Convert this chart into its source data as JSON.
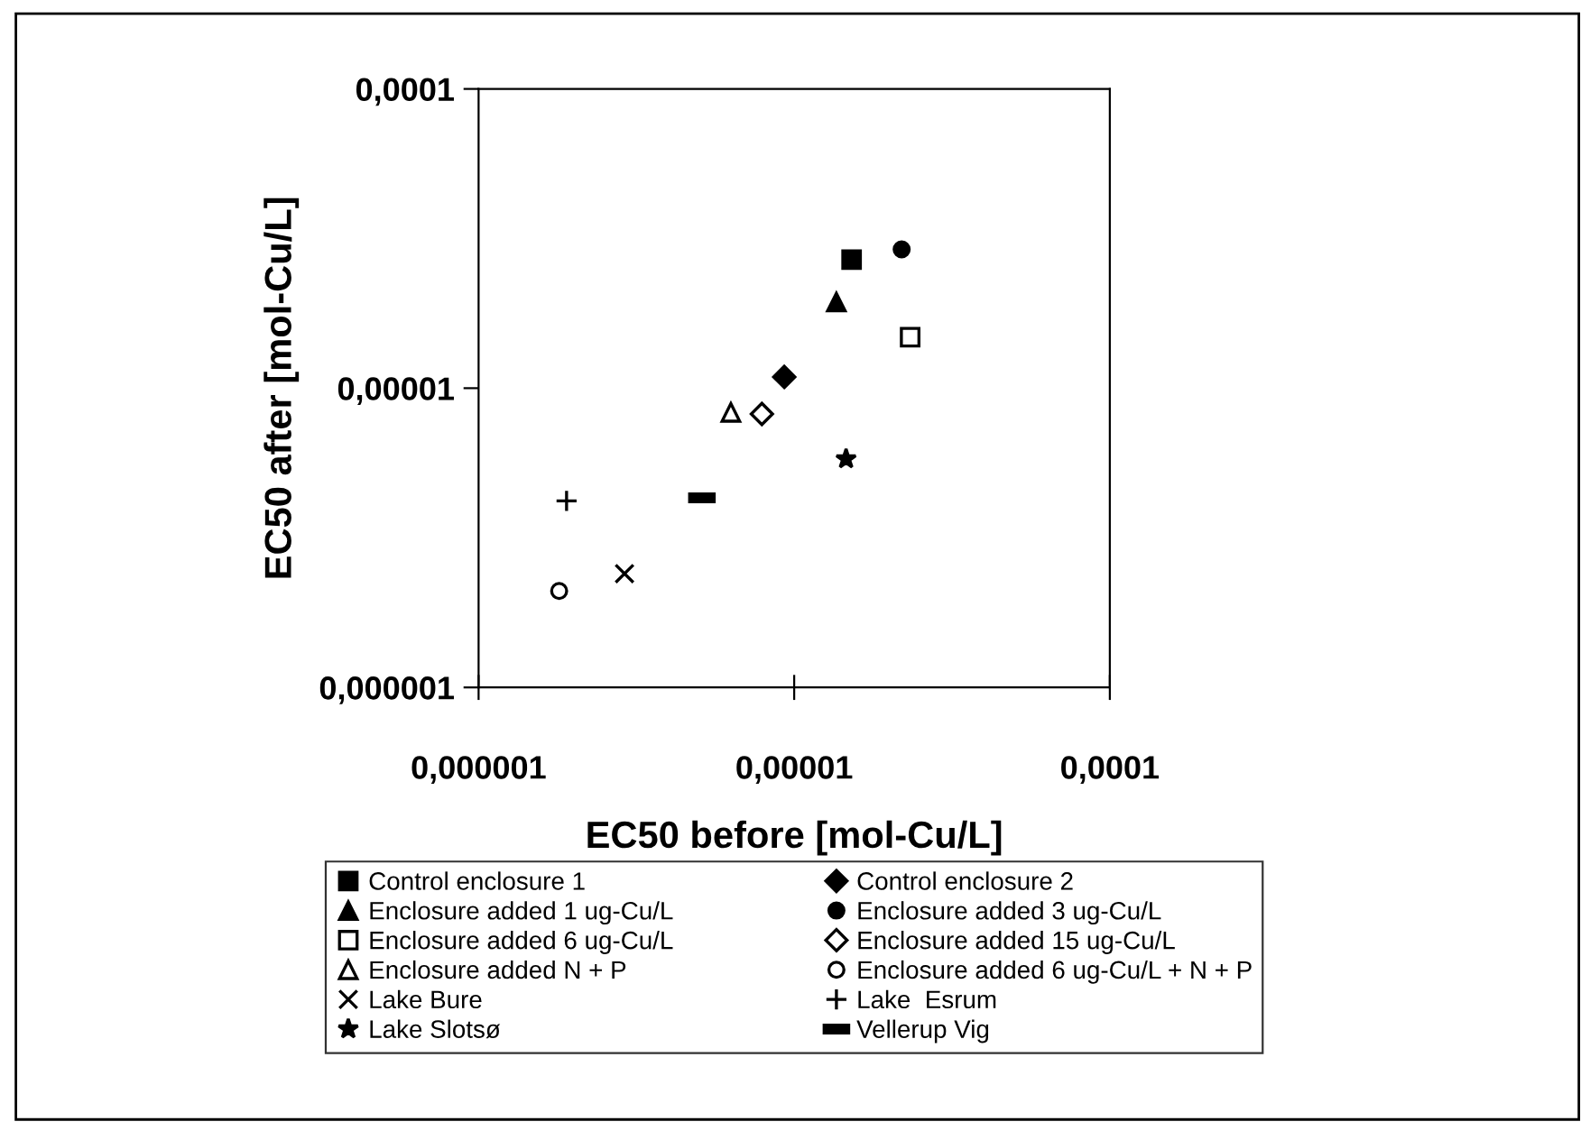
{
  "chart_data": {
    "type": "scatter",
    "xlabel": "EC50 before [mol-Cu/L]",
    "ylabel": "EC50 after [mol-Cu/L]",
    "log": "xy",
    "xlim": [
      1e-06,
      0.0001
    ],
    "ylim": [
      1e-06,
      0.0001
    ],
    "xticks": [
      {
        "value": 1e-06,
        "label": "0,000001"
      },
      {
        "value": 1e-05,
        "label": "0,00001"
      },
      {
        "value": 0.0001,
        "label": "0,0001"
      }
    ],
    "yticks": [
      {
        "value": 1e-06,
        "label": "0,000001"
      },
      {
        "value": 1e-05,
        "label": "0,00001"
      },
      {
        "value": 0.0001,
        "label": "0,0001"
      }
    ],
    "grid": false,
    "legend": "bottom",
    "series": [
      {
        "name": "Control enclosure 1",
        "color": "#000000",
        "marker": "square",
        "x": [
          1.52e-05
        ],
        "values": [
          2.69e-05
        ]
      },
      {
        "name": "Control enclosure 2",
        "color": "#000000",
        "marker": "diamond",
        "x": [
          9.3e-06
        ],
        "values": [
          1.09e-05
        ]
      },
      {
        "name": "Enclosure added 1 ug-Cu/L",
        "color": "#000000",
        "marker": "triangle",
        "x": [
          1.36e-05
        ],
        "values": [
          1.94e-05
        ]
      },
      {
        "name": "Enclosure added 3 ug-Cu/L",
        "color": "#000000",
        "marker": "circle",
        "x": [
          2.19e-05
        ],
        "values": [
          2.91e-05
        ]
      },
      {
        "name": "Enclosure added 6 ug-Cu/L",
        "color": "#000000",
        "marker": "square-open",
        "x": [
          2.33e-05
        ],
        "values": [
          1.48e-05
        ]
      },
      {
        "name": "Enclosure added 15 ug-Cu/L",
        "color": "#000000",
        "marker": "diamond-open",
        "x": [
          7.9e-06
        ],
        "values": [
          8.2e-06
        ]
      },
      {
        "name": "Enclosure added N + P",
        "color": "#000000",
        "marker": "triangle-open",
        "x": [
          6.3e-06
        ],
        "values": [
          8.3e-06
        ]
      },
      {
        "name": "Enclosure added 6 ug-Cu/L + N + P",
        "color": "#000000",
        "marker": "circle-open",
        "x": [
          1.8e-06
        ],
        "values": [
          2.1e-06
        ]
      },
      {
        "name": "Lake Bure",
        "color": "#000000",
        "marker": "cross",
        "x": [
          2.9e-06
        ],
        "values": [
          2.4e-06
        ]
      },
      {
        "name": "Lake  Esrum",
        "color": "#000000",
        "marker": "plus",
        "x": [
          1.9e-06
        ],
        "values": [
          4.2e-06
        ]
      },
      {
        "name": "Lake Slotsø",
        "color": "#000000",
        "marker": "star",
        "x": [
          1.46e-05
        ],
        "values": [
          5.8e-06
        ]
      },
      {
        "name": "Vellerup Vig",
        "color": "#000000",
        "marker": "square",
        "x": [
          5.1e-06
        ],
        "values": [
          4.3e-06
        ]
      }
    ]
  }
}
